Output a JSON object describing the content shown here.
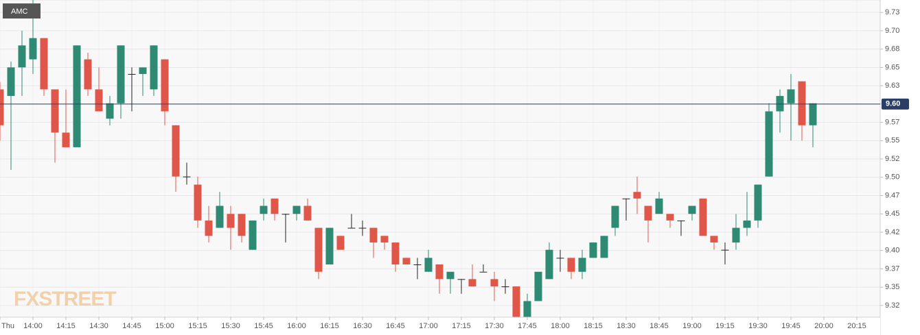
{
  "chart_data": {
    "type": "candlestick",
    "title": "AMC",
    "watermark": "FXSTREET",
    "up_color": "#2f8a74",
    "down_color": "#e0574a",
    "x": [
      "13:45",
      "13:50",
      "13:55",
      "14:00",
      "14:05",
      "14:10",
      "14:15",
      "14:20",
      "14:25",
      "14:30",
      "14:35",
      "14:40",
      "14:45",
      "14:50",
      "14:55",
      "15:00",
      "15:05",
      "15:10",
      "15:15",
      "15:20",
      "15:25",
      "15:30",
      "15:35",
      "15:40",
      "15:45",
      "15:50",
      "15:55",
      "16:00",
      "16:05",
      "16:10",
      "16:15",
      "16:20",
      "16:25",
      "16:30",
      "16:35",
      "16:40",
      "16:45",
      "16:50",
      "16:55",
      "17:00",
      "17:05",
      "17:10",
      "17:15",
      "17:20",
      "17:25",
      "17:30",
      "17:35",
      "17:40",
      "17:45",
      "17:50",
      "17:55",
      "18:00",
      "18:05",
      "18:10",
      "18:15",
      "18:20",
      "18:25",
      "18:30",
      "18:35",
      "18:40",
      "18:45",
      "18:50",
      "18:55",
      "19:00",
      "19:05",
      "19:10",
      "19:15",
      "19:20",
      "19:25",
      "19:30",
      "19:35",
      "19:40",
      "19:45",
      "19:50",
      "19:55"
    ],
    "open": [
      9.62,
      9.611,
      9.65,
      9.661,
      9.69,
      9.62,
      9.561,
      9.541,
      9.661,
      9.62,
      9.58,
      9.601,
      9.641,
      9.641,
      9.62,
      9.661,
      9.571,
      9.501,
      9.49,
      9.441,
      9.431,
      9.45,
      9.45,
      9.401,
      9.45,
      9.471,
      9.45,
      9.45,
      9.461,
      9.431,
      9.381,
      9.42,
      9.431,
      9.431,
      9.431,
      9.42,
      9.411,
      9.39,
      9.381,
      9.371,
      9.381,
      9.361,
      9.361,
      9.361,
      9.371,
      9.361,
      9.351,
      9.351,
      9.309,
      9.331,
      9.361,
      9.39,
      9.39,
      9.371,
      9.39,
      9.39,
      9.431,
      9.471,
      9.48,
      9.461,
      9.45,
      9.45,
      9.441,
      9.45,
      9.471,
      9.42,
      9.401,
      9.411,
      9.431,
      9.441,
      9.501,
      9.59,
      9.601,
      9.631,
      9.571
    ],
    "high": [
      9.63,
      9.658,
      9.7,
      9.742,
      9.69,
      9.62,
      9.62,
      9.68,
      9.67,
      9.65,
      9.611,
      9.68,
      9.65,
      9.65,
      9.68,
      9.661,
      9.571,
      9.52,
      9.501,
      9.461,
      9.48,
      9.461,
      9.45,
      9.441,
      9.471,
      9.471,
      9.45,
      9.461,
      9.471,
      9.431,
      9.431,
      9.42,
      9.45,
      9.441,
      9.431,
      9.42,
      9.411,
      9.39,
      9.39,
      9.401,
      9.381,
      9.371,
      9.361,
      9.381,
      9.381,
      9.371,
      9.361,
      9.351,
      9.341,
      9.371,
      9.411,
      9.401,
      9.39,
      9.401,
      9.411,
      9.42,
      9.461,
      9.471,
      9.501,
      9.461,
      9.48,
      9.45,
      9.441,
      9.461,
      9.471,
      9.42,
      9.411,
      9.45,
      9.48,
      9.49,
      9.601,
      9.62,
      9.641,
      9.631,
      9.601
    ],
    "low": [
      9.55,
      9.51,
      9.611,
      9.641,
      9.611,
      9.52,
      9.541,
      9.541,
      9.611,
      9.59,
      9.571,
      9.58,
      9.59,
      9.611,
      9.611,
      9.571,
      9.48,
      9.49,
      9.431,
      9.411,
      9.431,
      9.401,
      9.411,
      9.401,
      9.441,
      9.441,
      9.411,
      9.441,
      9.441,
      9.361,
      9.381,
      9.401,
      9.431,
      9.42,
      9.39,
      9.401,
      9.371,
      9.381,
      9.361,
      9.371,
      9.341,
      9.341,
      9.341,
      9.351,
      9.371,
      9.331,
      9.341,
      9.309,
      9.309,
      9.331,
      9.361,
      9.371,
      9.361,
      9.361,
      9.39,
      9.39,
      9.42,
      9.441,
      9.45,
      9.411,
      9.45,
      9.431,
      9.42,
      9.441,
      9.42,
      9.401,
      9.381,
      9.401,
      9.42,
      9.431,
      9.501,
      9.561,
      9.55,
      9.55,
      9.541
    ],
    "close": [
      9.571,
      9.65,
      9.68,
      9.69,
      9.62,
      9.561,
      9.541,
      9.68,
      9.62,
      9.59,
      9.601,
      9.68,
      9.641,
      9.65,
      9.68,
      9.59,
      9.501,
      9.501,
      9.441,
      9.42,
      9.461,
      9.431,
      9.42,
      9.441,
      9.461,
      9.45,
      9.45,
      9.461,
      9.441,
      9.371,
      9.431,
      9.401,
      9.431,
      9.431,
      9.411,
      9.411,
      9.381,
      9.381,
      9.381,
      9.39,
      9.361,
      9.371,
      9.361,
      9.351,
      9.371,
      9.351,
      9.351,
      9.309,
      9.331,
      9.371,
      9.401,
      9.39,
      9.371,
      9.39,
      9.411,
      9.42,
      9.461,
      9.471,
      9.471,
      9.441,
      9.471,
      9.441,
      9.441,
      9.461,
      9.42,
      9.411,
      9.401,
      9.431,
      9.441,
      9.49,
      9.59,
      9.611,
      9.62,
      9.571,
      9.601
    ],
    "xlim": [
      "13:45",
      "20:25"
    ],
    "ylim": [
      9.309,
      9.742
    ],
    "xticks": [
      {
        "value": "13:45",
        "label": "Thu"
      },
      "14:00",
      "14:15",
      "14:30",
      "14:45",
      "15:00",
      "15:15",
      "15:30",
      "15:45",
      "16:00",
      "16:15",
      "16:30",
      "16:45",
      "17:00",
      "17:15",
      "17:30",
      "17:45",
      "18:00",
      "18:15",
      "18:30",
      "18:45",
      "19:00",
      "19:15",
      "19:30",
      "19:45",
      "20:00",
      "20:15"
    ],
    "yticks": [
      {
        "value": 9.725,
        "label": "9.73"
      },
      {
        "value": 9.7,
        "label": "9.70"
      },
      {
        "value": 9.675,
        "label": "9.68"
      },
      {
        "value": 9.65,
        "label": "9.65"
      },
      {
        "value": 9.625,
        "label": "9.63"
      },
      {
        "value": 9.6,
        "label": "9.60"
      },
      {
        "value": 9.575,
        "label": "9.57"
      },
      {
        "value": 9.55,
        "label": "9.55"
      },
      {
        "value": 9.525,
        "label": "9.52"
      },
      {
        "value": 9.5,
        "label": "9.50"
      },
      {
        "value": 9.475,
        "label": "9.47"
      },
      {
        "value": 9.45,
        "label": "9.45"
      },
      {
        "value": 9.425,
        "label": "9.42"
      },
      {
        "value": 9.4,
        "label": "9.40"
      },
      {
        "value": 9.375,
        "label": "9.37"
      },
      {
        "value": 9.35,
        "label": "9.35"
      },
      {
        "value": 9.325,
        "label": "9.32"
      }
    ],
    "last_price": {
      "value": 9.6,
      "label": "9.60"
    },
    "grid": true
  }
}
